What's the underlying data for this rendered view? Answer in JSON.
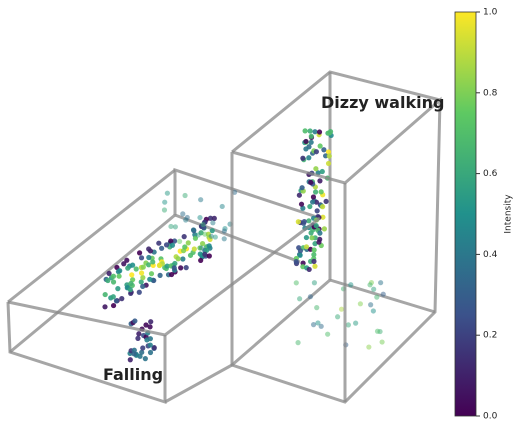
{
  "annotations": [
    "Falling",
    "Dizzy walking"
  ],
  "colorbar": {
    "label": "Intensity",
    "lim": [
      0,
      1
    ],
    "ticks": [
      {
        "value": 0,
        "label": "0.0"
      },
      {
        "value": 0.2,
        "label": "0.2"
      },
      {
        "value": 0.4,
        "label": "0.4"
      },
      {
        "value": 0.6,
        "label": "0.6"
      },
      {
        "value": 0.8,
        "label": "0.8"
      },
      {
        "value": 1,
        "label": "1.0"
      }
    ]
  }
}
